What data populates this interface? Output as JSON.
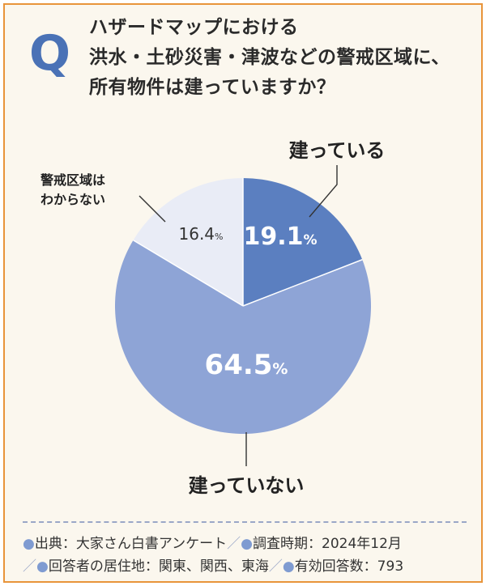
{
  "header": {
    "q_mark": "Q",
    "question_lines": [
      "ハザードマップにおける",
      "洪水・土砂災害・津波などの警戒区域に、",
      "所有物件は建っていますか？"
    ]
  },
  "chart_data": {
    "type": "pie",
    "title": "ハザードマップにおける洪水・土砂災害・津波などの警戒区域に、所有物件は建っていますか？",
    "start": "12 o'clock, clockwise",
    "slices": [
      {
        "label": "建っている",
        "value": 19.1,
        "value_text": "19.1",
        "color": "#5b7fc0",
        "text_color": "#ffffff"
      },
      {
        "label": "建っていない",
        "value": 64.5,
        "value_text": "64.5",
        "color": "#8ea4d6",
        "text_color": "#ffffff"
      },
      {
        "label": "警戒区域は わからない",
        "label_lines": [
          "警戒区域は",
          "わからない"
        ],
        "value": 16.4,
        "value_text": "16.4",
        "color": "#e9ecf6",
        "text_color": "#333333"
      }
    ],
    "unit": "%"
  },
  "footer": {
    "lines": [
      [
        {
          "kind": "dot",
          "text": "●"
        },
        {
          "kind": "text",
          "text": "出典：大家さん白書アンケート"
        },
        {
          "kind": "slash",
          "text": "／"
        },
        {
          "kind": "dot",
          "text": "●"
        },
        {
          "kind": "text",
          "text": "調査時期：2024年12月"
        }
      ],
      [
        {
          "kind": "slash",
          "text": "／"
        },
        {
          "kind": "dot",
          "text": "●"
        },
        {
          "kind": "text",
          "text": "回答者の居住地：関東、関西、東海"
        },
        {
          "kind": "slash",
          "text": "／"
        },
        {
          "kind": "dot",
          "text": "●"
        },
        {
          "kind": "text",
          "text": "有効回答数：793"
        }
      ]
    ]
  },
  "colors": {
    "border": "#e8943a",
    "background": "#fbf7ee",
    "accent": "#4a72b6"
  }
}
